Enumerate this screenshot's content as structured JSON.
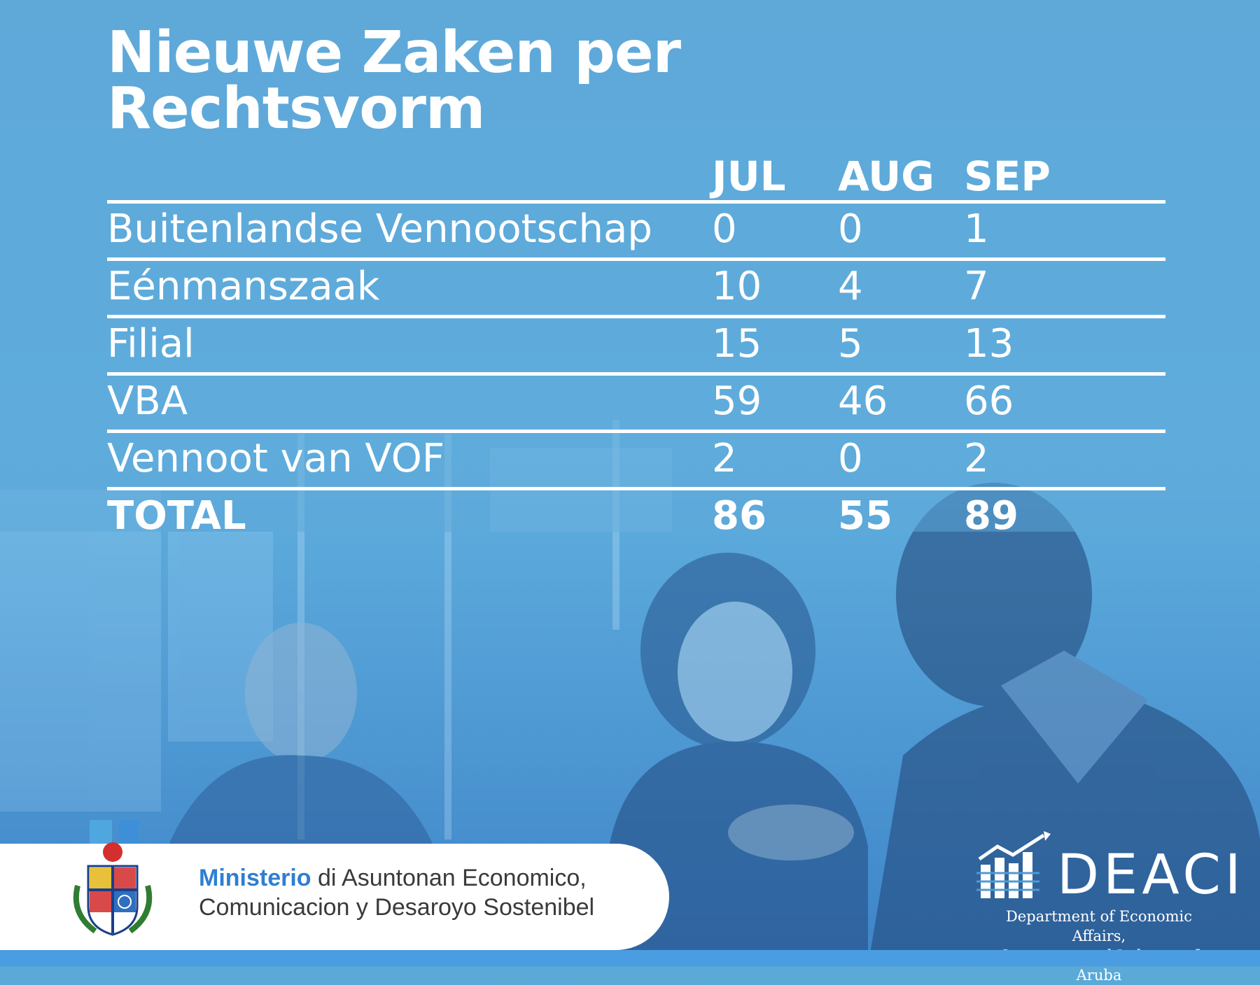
{
  "title": "Nieuwe Zaken per Rechtsvorm",
  "columns": [
    "JUL",
    "AUG",
    "SEP"
  ],
  "rows": [
    {
      "label": "Buitenlandse Vennootschap",
      "values": [
        "0",
        "0",
        "1"
      ]
    },
    {
      "label": "Eénmanszaak",
      "values": [
        "10",
        "4",
        "7"
      ]
    },
    {
      "label": "Filial",
      "values": [
        "15",
        "5",
        "13"
      ]
    },
    {
      "label": "VBA",
      "values": [
        "59",
        "46",
        "66"
      ]
    },
    {
      "label": "Vennoot van VOF",
      "values": [
        "2",
        "0",
        "2"
      ]
    }
  ],
  "total": {
    "label": "TOTAL",
    "values": [
      "86",
      "55",
      "89"
    ]
  },
  "ministry": {
    "highlight": "Ministerio",
    "line1_rest": " di Asuntonan Economico,",
    "line2": "Comunicacion y Desaroyo Sostenibel"
  },
  "deaci": {
    "name": "DEACI",
    "sub_line1": "Department of Economic Affairs,",
    "sub_line2": "Commerce and Industry of Aruba"
  },
  "colors": {
    "background": "#5aa9d6",
    "accent_blue": "#2f7fd1"
  },
  "icons": [
    "aruba-coat-of-arms-icon",
    "deaci-chart-logo-icon"
  ]
}
